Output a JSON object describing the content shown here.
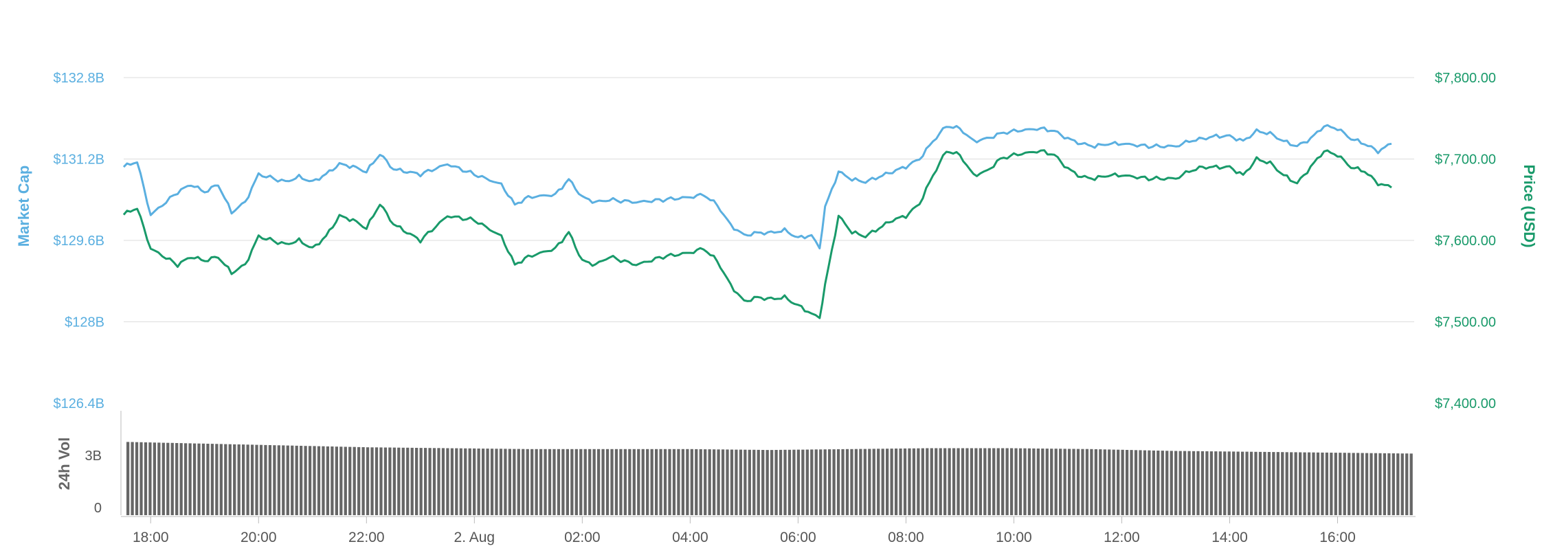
{
  "chart_data": {
    "type": "line",
    "title": "",
    "grid": true,
    "x_ticks": [
      "18:00",
      "20:00",
      "22:00",
      "2. Aug",
      "02:00",
      "04:00",
      "06:00",
      "08:00",
      "10:00",
      "12:00",
      "14:00",
      "16:00"
    ],
    "x_range": [
      "17:30",
      "17:25"
    ],
    "y_left": {
      "label": "Market Cap",
      "ticks": [
        "$132.8B",
        "$131.2B",
        "$129.6B",
        "$128B",
        "$126.4B"
      ],
      "range": [
        126.4,
        132.8
      ],
      "unit": "B"
    },
    "y_right": {
      "label": "Price (USD)",
      "ticks": [
        "$7,800.00",
        "$7,700.00",
        "$7,600.00",
        "$7,500.00",
        "$7,400.00"
      ],
      "range": [
        7400,
        7800
      ]
    },
    "volume_axis": {
      "label": "24h Vol",
      "ticks": [
        "3B",
        "0"
      ]
    },
    "colors": {
      "market_cap": "#5aafe0",
      "price": "#199a6a",
      "volume": "#666666",
      "grid": "#dddddd"
    },
    "series": [
      {
        "key": "market_cap",
        "points": [
          [
            17.5,
            131.05
          ],
          [
            17.75,
            131.15
          ],
          [
            18.0,
            130.1
          ],
          [
            18.5,
            130.55
          ],
          [
            18.75,
            130.7
          ],
          [
            19.0,
            130.55
          ],
          [
            19.25,
            130.7
          ],
          [
            19.5,
            130.15
          ],
          [
            19.75,
            130.35
          ],
          [
            20.0,
            130.9
          ],
          [
            20.5,
            130.75
          ],
          [
            20.75,
            130.85
          ],
          [
            21.0,
            130.75
          ],
          [
            21.25,
            130.9
          ],
          [
            21.5,
            131.1
          ],
          [
            21.75,
            131.05
          ],
          [
            22.0,
            130.95
          ],
          [
            22.25,
            131.3
          ],
          [
            22.5,
            131.0
          ],
          [
            22.75,
            130.95
          ],
          [
            23.0,
            130.9
          ],
          [
            23.5,
            131.1
          ],
          [
            24.0,
            130.9
          ],
          [
            24.5,
            130.7
          ],
          [
            24.75,
            130.3
          ],
          [
            25.0,
            130.45
          ],
          [
            25.5,
            130.5
          ],
          [
            25.75,
            130.8
          ],
          [
            26.0,
            130.45
          ],
          [
            26.25,
            130.35
          ],
          [
            26.5,
            130.4
          ],
          [
            27.0,
            130.35
          ],
          [
            27.5,
            130.4
          ],
          [
            28.0,
            130.45
          ],
          [
            28.25,
            130.5
          ],
          [
            28.5,
            130.3
          ],
          [
            28.75,
            129.9
          ],
          [
            29.0,
            129.7
          ],
          [
            29.25,
            129.75
          ],
          [
            29.5,
            129.75
          ],
          [
            29.75,
            129.8
          ],
          [
            30.0,
            129.65
          ],
          [
            30.25,
            129.7
          ],
          [
            30.4,
            129.45
          ],
          [
            30.5,
            130.25
          ],
          [
            30.75,
            130.95
          ],
          [
            31.0,
            130.8
          ],
          [
            31.25,
            130.75
          ],
          [
            31.5,
            130.85
          ],
          [
            31.75,
            130.95
          ],
          [
            32.0,
            131.05
          ],
          [
            32.25,
            131.2
          ],
          [
            32.5,
            131.55
          ],
          [
            32.75,
            131.85
          ],
          [
            33.0,
            131.8
          ],
          [
            33.25,
            131.55
          ],
          [
            33.5,
            131.6
          ],
          [
            33.75,
            131.7
          ],
          [
            34.0,
            131.75
          ],
          [
            34.5,
            131.8
          ],
          [
            34.75,
            131.75
          ],
          [
            35.0,
            131.6
          ],
          [
            35.25,
            131.5
          ],
          [
            35.5,
            131.45
          ],
          [
            35.75,
            131.5
          ],
          [
            36.0,
            131.5
          ],
          [
            36.5,
            131.45
          ],
          [
            37.0,
            131.45
          ],
          [
            37.25,
            131.55
          ],
          [
            37.5,
            131.6
          ],
          [
            37.75,
            131.65
          ],
          [
            38.0,
            131.65
          ],
          [
            38.25,
            131.55
          ],
          [
            38.5,
            131.75
          ],
          [
            38.75,
            131.7
          ],
          [
            39.0,
            131.55
          ],
          [
            39.25,
            131.45
          ],
          [
            39.5,
            131.6
          ],
          [
            39.75,
            131.85
          ],
          [
            40.0,
            131.8
          ],
          [
            40.25,
            131.6
          ],
          [
            40.5,
            131.5
          ],
          [
            40.75,
            131.35
          ],
          [
            41.0,
            131.5
          ]
        ]
      },
      {
        "key": "price",
        "points": [
          [
            17.5,
            7632
          ],
          [
            17.75,
            7640
          ],
          [
            18.0,
            7590
          ],
          [
            18.5,
            7570
          ],
          [
            18.75,
            7580
          ],
          [
            19.0,
            7575
          ],
          [
            19.25,
            7580
          ],
          [
            19.5,
            7560
          ],
          [
            19.75,
            7570
          ],
          [
            20.0,
            7605
          ],
          [
            20.5,
            7595
          ],
          [
            20.75,
            7600
          ],
          [
            21.0,
            7590
          ],
          [
            21.25,
            7605
          ],
          [
            21.5,
            7630
          ],
          [
            21.75,
            7625
          ],
          [
            22.0,
            7615
          ],
          [
            22.25,
            7645
          ],
          [
            22.5,
            7620
          ],
          [
            22.75,
            7610
          ],
          [
            23.0,
            7600
          ],
          [
            23.5,
            7630
          ],
          [
            24.0,
            7625
          ],
          [
            24.5,
            7605
          ],
          [
            24.75,
            7570
          ],
          [
            25.0,
            7580
          ],
          [
            25.5,
            7590
          ],
          [
            25.75,
            7610
          ],
          [
            26.0,
            7575
          ],
          [
            26.25,
            7570
          ],
          [
            26.5,
            7580
          ],
          [
            27.0,
            7570
          ],
          [
            27.5,
            7580
          ],
          [
            28.0,
            7585
          ],
          [
            28.25,
            7590
          ],
          [
            28.5,
            7575
          ],
          [
            28.75,
            7545
          ],
          [
            29.0,
            7525
          ],
          [
            29.25,
            7530
          ],
          [
            29.5,
            7528
          ],
          [
            29.75,
            7530
          ],
          [
            30.0,
            7520
          ],
          [
            30.25,
            7510
          ],
          [
            30.4,
            7505
          ],
          [
            30.5,
            7545
          ],
          [
            30.75,
            7630
          ],
          [
            31.0,
            7610
          ],
          [
            31.25,
            7605
          ],
          [
            31.5,
            7615
          ],
          [
            31.75,
            7625
          ],
          [
            32.0,
            7630
          ],
          [
            32.25,
            7645
          ],
          [
            32.5,
            7680
          ],
          [
            32.75,
            7710
          ],
          [
            33.0,
            7705
          ],
          [
            33.25,
            7680
          ],
          [
            33.5,
            7685
          ],
          [
            33.75,
            7700
          ],
          [
            34.0,
            7705
          ],
          [
            34.5,
            7710
          ],
          [
            34.75,
            7705
          ],
          [
            35.0,
            7688
          ],
          [
            35.25,
            7678
          ],
          [
            35.5,
            7676
          ],
          [
            35.75,
            7680
          ],
          [
            36.0,
            7680
          ],
          [
            36.5,
            7676
          ],
          [
            37.0,
            7676
          ],
          [
            37.25,
            7685
          ],
          [
            37.5,
            7690
          ],
          [
            37.75,
            7690
          ],
          [
            38.0,
            7690
          ],
          [
            38.25,
            7680
          ],
          [
            38.5,
            7700
          ],
          [
            38.75,
            7695
          ],
          [
            39.0,
            7680
          ],
          [
            39.25,
            7670
          ],
          [
            39.5,
            7690
          ],
          [
            39.75,
            7710
          ],
          [
            40.0,
            7705
          ],
          [
            40.25,
            7690
          ],
          [
            40.5,
            7685
          ],
          [
            40.75,
            7670
          ],
          [
            41.0,
            7665
          ]
        ]
      },
      {
        "key": "volume",
        "values_bn": [
          4.1,
          4.0,
          3.9,
          3.8,
          3.75,
          3.7,
          3.7,
          3.7,
          3.65,
          3.7,
          3.75,
          3.75,
          3.7,
          3.6,
          3.55,
          3.5,
          3.45
        ]
      }
    ]
  }
}
